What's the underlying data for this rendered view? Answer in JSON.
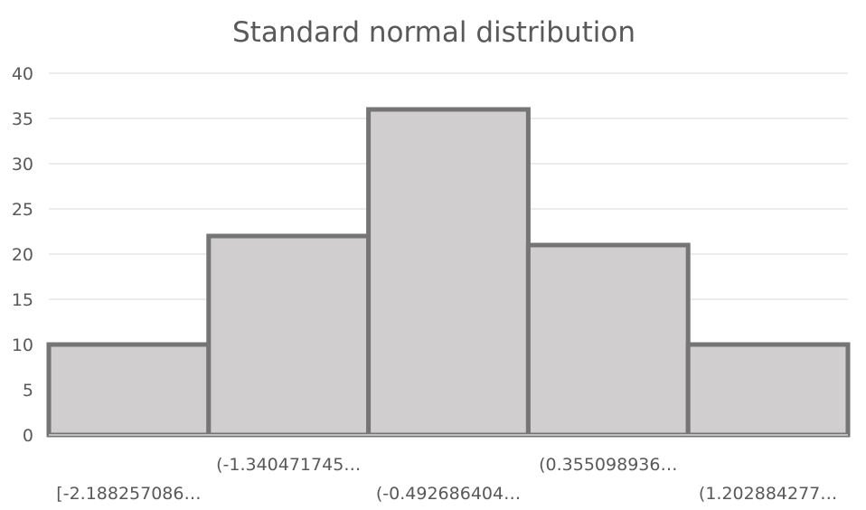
{
  "chart_data": {
    "type": "bar",
    "title": "Standard normal distribution",
    "categories": [
      "[-2.188257086…",
      "(-1.340471745…",
      "(-0.492686404…",
      "(0.355098936…",
      "(1.202884277…"
    ],
    "values": [
      10,
      22,
      36,
      21,
      10
    ],
    "ylim": [
      0,
      40
    ],
    "yticks": [
      0,
      5,
      10,
      15,
      20,
      25,
      30,
      35,
      40
    ],
    "grid": true,
    "legend": "none",
    "bar_fill": "#d0cece",
    "bar_stroke": "#757575",
    "grid_color": "#d9d9d9",
    "text_color": "#595959"
  }
}
